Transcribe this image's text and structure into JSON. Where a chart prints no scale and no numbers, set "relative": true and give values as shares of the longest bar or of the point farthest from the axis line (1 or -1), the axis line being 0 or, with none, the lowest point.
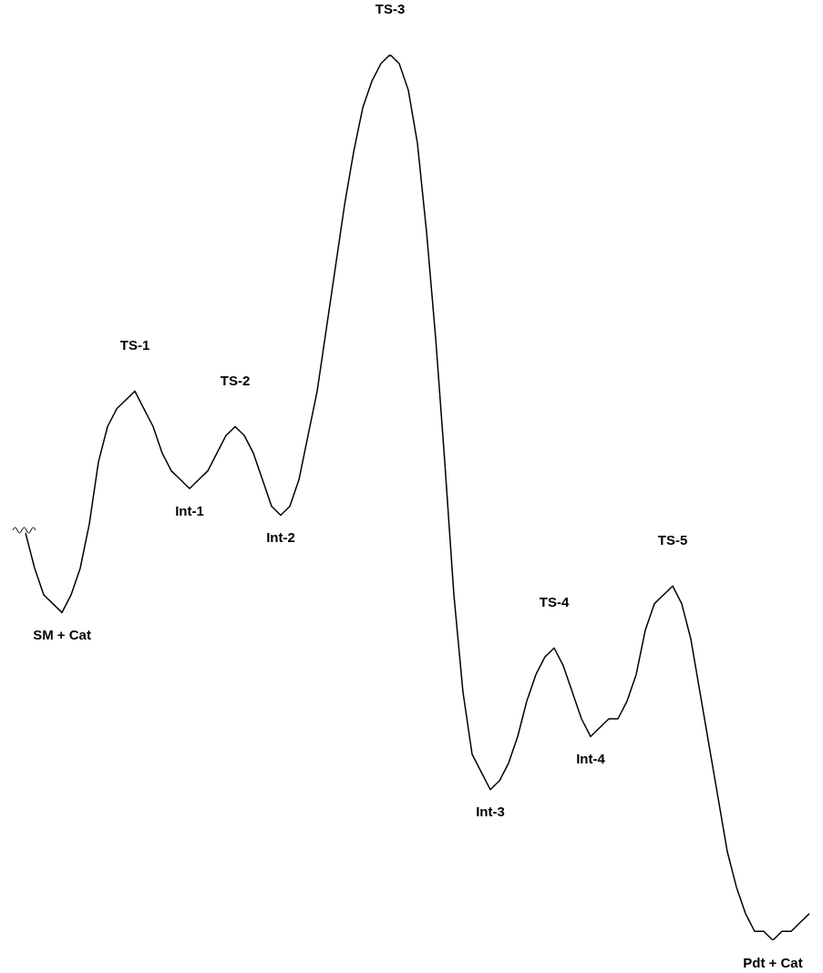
{
  "chart_data": {
    "type": "line",
    "relative": true,
    "color": "#000000",
    "tick_labels": false,
    "categories": [
      null,
      null,
      null,
      null,
      null,
      null,
      null,
      null,
      null,
      null,
      null,
      null,
      null,
      null,
      null,
      null,
      null,
      null,
      null,
      null,
      null,
      null,
      null,
      null,
      null,
      null,
      null,
      null,
      null,
      null,
      null,
      null,
      null,
      null,
      null,
      null,
      null,
      null,
      null,
      null,
      null,
      null,
      null,
      null,
      null,
      null,
      null,
      null,
      null,
      null,
      null,
      null,
      null,
      null,
      null,
      null,
      null,
      null,
      null,
      null,
      null,
      null,
      null,
      null,
      null,
      null,
      null,
      null,
      null,
      null,
      null,
      null,
      null,
      null,
      null,
      null,
      null,
      null,
      null,
      null,
      null,
      null,
      null,
      null,
      null,
      null,
      null
    ],
    "values": [
      0.46,
      0.42,
      0.39,
      0.38,
      0.37,
      0.39,
      0.42,
      0.47,
      0.54,
      0.58,
      0.6,
      0.61,
      0.62,
      0.6,
      0.58,
      0.55,
      0.53,
      0.52,
      0.51,
      0.52,
      0.53,
      0.55,
      0.57,
      0.58,
      0.57,
      0.55,
      0.52,
      0.49,
      0.48,
      0.49,
      0.52,
      0.57,
      0.62,
      0.69,
      0.76,
      0.83,
      0.89,
      0.94,
      0.97,
      0.99,
      1.0,
      0.99,
      0.96,
      0.9,
      0.8,
      0.68,
      0.54,
      0.39,
      0.28,
      0.21,
      0.19,
      0.17,
      0.18,
      0.2,
      0.23,
      0.27,
      0.3,
      0.32,
      0.33,
      0.31,
      0.28,
      0.25,
      0.23,
      0.24,
      0.25,
      0.25,
      0.27,
      0.3,
      0.35,
      0.38,
      0.39,
      0.4,
      0.38,
      0.34,
      0.28,
      0.22,
      0.16,
      0.1,
      0.06,
      0.03,
      0.01,
      0.01,
      0,
      0.01,
      0.01,
      0.02,
      0.03
    ],
    "annotations": [
      "SM + Cat",
      "TS-1",
      "Int-1",
      "TS-2",
      "Int-2",
      "TS-3",
      "Int-3",
      "TS-4",
      "Int-4",
      "TS-5",
      "Pdt + Cat"
    ]
  }
}
